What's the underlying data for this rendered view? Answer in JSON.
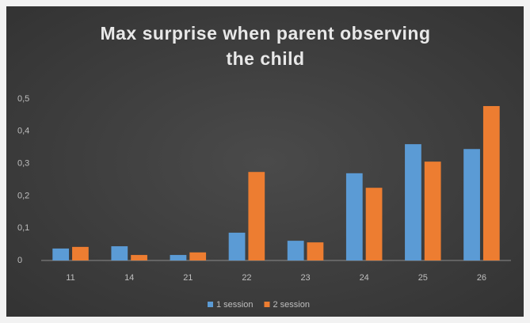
{
  "chart_data": {
    "type": "bar",
    "title": "Max surprise when parent observing the child",
    "categories": [
      "11",
      "14",
      "21",
      "22",
      "23",
      "24",
      "25",
      "26"
    ],
    "series": [
      {
        "name": "1 session",
        "color": "#5b9bd5",
        "values": [
          0.037,
          0.044,
          0.017,
          0.086,
          0.061,
          0.27,
          0.36,
          0.345
        ]
      },
      {
        "name": "2 session",
        "color": "#ed7d31",
        "values": [
          0.042,
          0.017,
          0.025,
          0.274,
          0.056,
          0.225,
          0.306,
          0.478
        ]
      }
    ],
    "ylim": [
      0,
      0.5
    ],
    "yticks": [
      0,
      {
        "value": 0.1,
        "label": "0,1"
      },
      {
        "value": 0.2,
        "label": "0,2"
      },
      {
        "value": 0.3,
        "label": "0,3"
      },
      {
        "value": 0.4,
        "label": "0,4"
      },
      {
        "value": 0.5,
        "label": "0,5"
      }
    ],
    "grid": false,
    "legend": "bottom"
  }
}
